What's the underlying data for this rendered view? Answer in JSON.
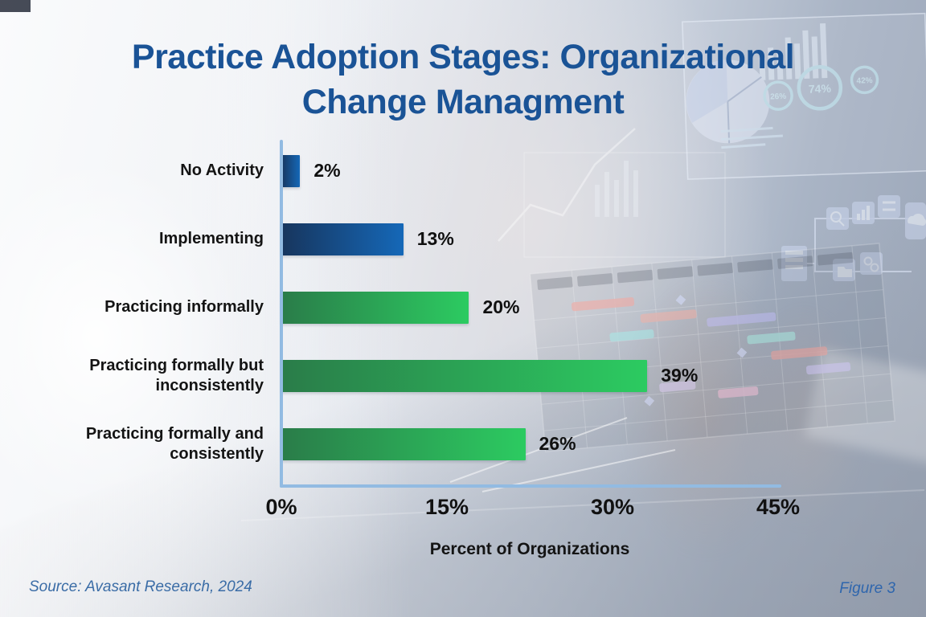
{
  "title": {
    "line1": "Practice Adoption Stages: Organizational",
    "line2": "Change Managment"
  },
  "chart_data": {
    "type": "bar",
    "orientation": "horizontal",
    "title": "Practice Adoption Stages: Organizational Change Managment",
    "categories": [
      "No Activity",
      "Implementing",
      "Practicing informally",
      "Practicing formally but inconsistently",
      "Practicing formally and consistently"
    ],
    "values": [
      2,
      13,
      20,
      39,
      26
    ],
    "value_labels": [
      "2%",
      "13%",
      "20%",
      "39%",
      "26%"
    ],
    "bar_colors": [
      "blue",
      "blue",
      "green",
      "green",
      "green"
    ],
    "xlabel": "Percent of Organizations",
    "x_ticks": [
      "0%",
      "15%",
      "30%",
      "45%"
    ],
    "xlim": [
      0,
      45
    ],
    "grid": false,
    "legend": "none"
  },
  "footer": {
    "source": "Source: Avasant Research, 2024",
    "figure": "Figure 3"
  },
  "colors": {
    "title_blue": "#1a5396",
    "axis_blue": "#92bbe2",
    "bar_blue_start": "#17355d",
    "bar_blue_end": "#1568b8",
    "bar_green_start": "#2a7c49",
    "bar_green_end": "#2ccb61",
    "footer_blue": "#3a6ca6"
  },
  "background_dashboard": {
    "gauge_left": "26%",
    "gauge_center": "74%",
    "gauge_right": "42%"
  }
}
